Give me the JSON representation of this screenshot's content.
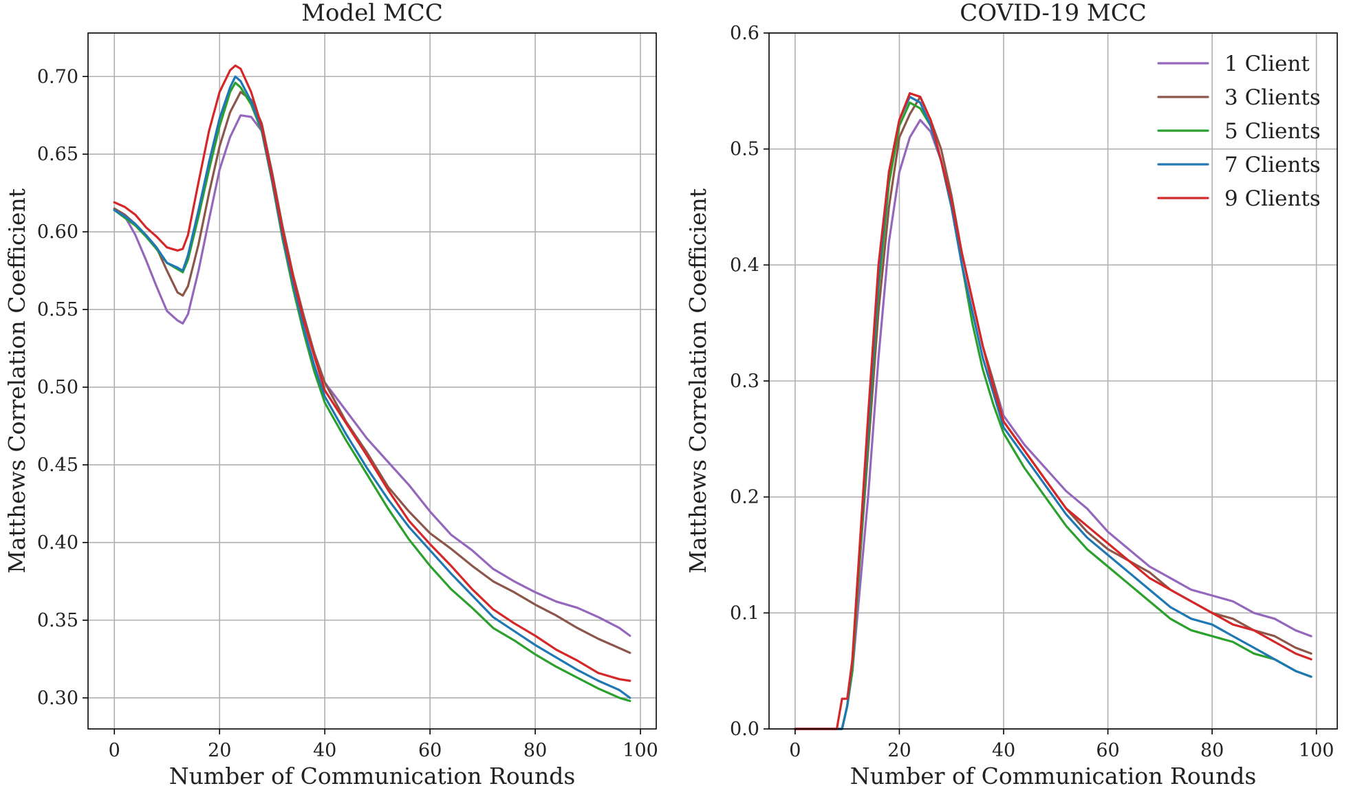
{
  "colors": {
    "series": [
      "#9467bd",
      "#8c564b",
      "#2ca02c",
      "#1f77b4",
      "#d62728"
    ],
    "grid": "#b0b0b0"
  },
  "chart_data": [
    {
      "type": "line",
      "title": "Model MCC",
      "xlabel": "Number of Communication Rounds",
      "ylabel": "Matthews Correlation Coefficient",
      "xlim": [
        -5,
        103
      ],
      "ylim": [
        0.28,
        0.728
      ],
      "xticks": [
        0,
        20,
        40,
        60,
        80,
        100
      ],
      "yticks": [
        0.3,
        0.35,
        0.4,
        0.45,
        0.5,
        0.55,
        0.6,
        0.65,
        0.7
      ],
      "ytick_labels": [
        "0.30",
        "0.35",
        "0.40",
        "0.45",
        "0.50",
        "0.55",
        "0.60",
        "0.65",
        "0.70"
      ],
      "grid": true,
      "legend": null,
      "series": [
        {
          "name": "1 Client",
          "x": [
            0,
            2,
            4,
            6,
            8,
            10,
            12,
            13,
            14,
            16,
            18,
            20,
            22,
            24,
            26,
            28,
            30,
            32,
            34,
            36,
            38,
            40,
            44,
            48,
            52,
            56,
            60,
            64,
            68,
            72,
            76,
            80,
            84,
            88,
            92,
            96,
            98
          ],
          "y": [
            0.615,
            0.61,
            0.598,
            0.582,
            0.565,
            0.549,
            0.543,
            0.541,
            0.547,
            0.575,
            0.608,
            0.64,
            0.661,
            0.675,
            0.674,
            0.665,
            0.635,
            0.6,
            0.57,
            0.545,
            0.522,
            0.503,
            0.485,
            0.467,
            0.452,
            0.437,
            0.42,
            0.405,
            0.395,
            0.383,
            0.375,
            0.368,
            0.362,
            0.358,
            0.352,
            0.345,
            0.34
          ]
        },
        {
          "name": "3 Clients",
          "x": [
            0,
            2,
            4,
            6,
            8,
            10,
            12,
            13,
            14,
            16,
            18,
            20,
            22,
            24,
            26,
            28,
            30,
            32,
            34,
            36,
            38,
            40,
            44,
            48,
            52,
            56,
            60,
            64,
            68,
            72,
            76,
            80,
            84,
            88,
            92,
            96,
            98
          ],
          "y": [
            0.615,
            0.611,
            0.605,
            0.598,
            0.59,
            0.575,
            0.561,
            0.559,
            0.565,
            0.592,
            0.625,
            0.655,
            0.677,
            0.69,
            0.685,
            0.67,
            0.638,
            0.603,
            0.572,
            0.546,
            0.522,
            0.503,
            0.478,
            0.458,
            0.436,
            0.42,
            0.406,
            0.396,
            0.385,
            0.375,
            0.368,
            0.36,
            0.353,
            0.345,
            0.338,
            0.332,
            0.329
          ]
        },
        {
          "name": "5 Clients",
          "x": [
            0,
            2,
            4,
            6,
            8,
            10,
            12,
            13,
            14,
            16,
            18,
            20,
            22,
            23,
            24,
            26,
            28,
            30,
            32,
            34,
            36,
            38,
            40,
            44,
            48,
            52,
            56,
            60,
            64,
            68,
            72,
            76,
            80,
            84,
            88,
            92,
            96,
            98
          ],
          "y": [
            0.614,
            0.609,
            0.604,
            0.597,
            0.589,
            0.58,
            0.576,
            0.574,
            0.582,
            0.61,
            0.64,
            0.668,
            0.69,
            0.696,
            0.693,
            0.682,
            0.665,
            0.632,
            0.595,
            0.563,
            0.535,
            0.51,
            0.49,
            0.466,
            0.444,
            0.422,
            0.402,
            0.385,
            0.37,
            0.358,
            0.345,
            0.337,
            0.328,
            0.32,
            0.313,
            0.306,
            0.3,
            0.298
          ]
        },
        {
          "name": "7 Clients",
          "x": [
            0,
            2,
            4,
            6,
            8,
            10,
            12,
            13,
            14,
            16,
            18,
            20,
            22,
            23,
            24,
            26,
            28,
            30,
            32,
            34,
            36,
            38,
            40,
            44,
            48,
            52,
            56,
            60,
            64,
            68,
            72,
            76,
            80,
            84,
            88,
            92,
            96,
            98
          ],
          "y": [
            0.614,
            0.61,
            0.605,
            0.598,
            0.59,
            0.58,
            0.577,
            0.575,
            0.585,
            0.614,
            0.645,
            0.673,
            0.693,
            0.7,
            0.697,
            0.684,
            0.666,
            0.633,
            0.597,
            0.566,
            0.538,
            0.514,
            0.494,
            0.47,
            0.448,
            0.428,
            0.41,
            0.395,
            0.38,
            0.366,
            0.352,
            0.343,
            0.334,
            0.326,
            0.318,
            0.311,
            0.305,
            0.3
          ]
        },
        {
          "name": "9 Clients",
          "x": [
            0,
            2,
            4,
            6,
            8,
            10,
            12,
            13,
            14,
            16,
            18,
            20,
            22,
            23,
            24,
            26,
            28,
            30,
            32,
            34,
            36,
            38,
            40,
            44,
            48,
            52,
            56,
            60,
            64,
            68,
            72,
            76,
            80,
            84,
            88,
            92,
            96,
            98
          ],
          "y": [
            0.619,
            0.616,
            0.611,
            0.603,
            0.597,
            0.59,
            0.588,
            0.589,
            0.598,
            0.632,
            0.665,
            0.69,
            0.704,
            0.707,
            0.705,
            0.69,
            0.668,
            0.635,
            0.6,
            0.57,
            0.543,
            0.52,
            0.498,
            0.477,
            0.456,
            0.434,
            0.414,
            0.399,
            0.385,
            0.37,
            0.357,
            0.348,
            0.34,
            0.331,
            0.324,
            0.316,
            0.312,
            0.311
          ]
        }
      ]
    },
    {
      "type": "line",
      "title": "COVID-19 MCC",
      "xlabel": "Number of Communication Rounds",
      "ylabel": "Matthews Correlation Coefficient",
      "xlim": [
        -5,
        104
      ],
      "ylim": [
        0.0,
        0.6
      ],
      "xticks": [
        0,
        20,
        40,
        60,
        80,
        100
      ],
      "yticks": [
        0.0,
        0.1,
        0.2,
        0.3,
        0.4,
        0.5,
        0.6
      ],
      "ytick_labels": [
        "0.0",
        "0.1",
        "0.2",
        "0.3",
        "0.4",
        "0.5",
        "0.6"
      ],
      "grid": true,
      "legend": "top-right",
      "series": [
        {
          "name": "1 Client",
          "x": [
            0,
            8,
            9,
            10,
            11,
            12,
            14,
            16,
            18,
            20,
            22,
            24,
            26,
            28,
            30,
            32,
            34,
            36,
            38,
            40,
            44,
            48,
            52,
            56,
            60,
            64,
            68,
            72,
            76,
            80,
            84,
            88,
            92,
            96,
            99
          ],
          "y": [
            0.0,
            0.0,
            0.0,
            0.02,
            0.05,
            0.1,
            0.2,
            0.32,
            0.42,
            0.48,
            0.51,
            0.525,
            0.515,
            0.49,
            0.45,
            0.41,
            0.37,
            0.33,
            0.3,
            0.27,
            0.245,
            0.225,
            0.205,
            0.19,
            0.17,
            0.155,
            0.14,
            0.13,
            0.12,
            0.115,
            0.11,
            0.1,
            0.095,
            0.085,
            0.08
          ]
        },
        {
          "name": "3 Clients",
          "x": [
            0,
            8,
            9,
            10,
            11,
            12,
            14,
            16,
            18,
            20,
            22,
            24,
            26,
            28,
            30,
            32,
            34,
            36,
            38,
            40,
            44,
            48,
            52,
            56,
            60,
            64,
            68,
            72,
            76,
            80,
            84,
            88,
            92,
            96,
            99
          ],
          "y": [
            0.0,
            0.0,
            0.0,
            0.02,
            0.055,
            0.12,
            0.24,
            0.36,
            0.45,
            0.51,
            0.53,
            0.545,
            0.525,
            0.5,
            0.46,
            0.41,
            0.37,
            0.33,
            0.3,
            0.265,
            0.24,
            0.215,
            0.19,
            0.17,
            0.155,
            0.145,
            0.135,
            0.12,
            0.11,
            0.1,
            0.095,
            0.085,
            0.08,
            0.07,
            0.065
          ]
        },
        {
          "name": "5 Clients",
          "x": [
            0,
            8,
            9,
            10,
            11,
            12,
            14,
            16,
            18,
            20,
            22,
            24,
            26,
            28,
            30,
            32,
            34,
            36,
            38,
            40,
            44,
            48,
            52,
            56,
            60,
            64,
            68,
            72,
            76,
            80,
            84,
            88,
            92,
            96,
            99
          ],
          "y": [
            0.0,
            0.0,
            0.0,
            0.02,
            0.05,
            0.12,
            0.25,
            0.38,
            0.47,
            0.52,
            0.54,
            0.535,
            0.52,
            0.49,
            0.45,
            0.4,
            0.35,
            0.31,
            0.28,
            0.255,
            0.225,
            0.2,
            0.175,
            0.155,
            0.14,
            0.125,
            0.11,
            0.095,
            0.085,
            0.08,
            0.075,
            0.065,
            0.06,
            0.05,
            0.045
          ]
        },
        {
          "name": "7 Clients",
          "x": [
            0,
            8,
            9,
            10,
            11,
            12,
            14,
            16,
            18,
            20,
            22,
            24,
            26,
            28,
            30,
            32,
            34,
            36,
            38,
            40,
            44,
            48,
            52,
            56,
            60,
            64,
            68,
            72,
            76,
            80,
            84,
            88,
            92,
            96,
            99
          ],
          "y": [
            0.0,
            0.0,
            0.0,
            0.02,
            0.06,
            0.13,
            0.26,
            0.39,
            0.48,
            0.525,
            0.545,
            0.54,
            0.52,
            0.49,
            0.45,
            0.4,
            0.36,
            0.32,
            0.29,
            0.26,
            0.235,
            0.21,
            0.185,
            0.165,
            0.15,
            0.135,
            0.12,
            0.105,
            0.095,
            0.09,
            0.08,
            0.07,
            0.06,
            0.05,
            0.045
          ]
        },
        {
          "name": "9 Clients",
          "x": [
            0,
            8,
            9,
            10,
            11,
            12,
            14,
            16,
            18,
            20,
            22,
            24,
            26,
            28,
            30,
            32,
            34,
            36,
            38,
            40,
            44,
            48,
            52,
            56,
            60,
            64,
            68,
            72,
            76,
            80,
            84,
            88,
            92,
            96,
            99
          ],
          "y": [
            0.0,
            0.0,
            0.026,
            0.026,
            0.06,
            0.13,
            0.27,
            0.4,
            0.48,
            0.525,
            0.548,
            0.545,
            0.525,
            0.49,
            0.455,
            0.41,
            0.37,
            0.33,
            0.295,
            0.265,
            0.24,
            0.215,
            0.19,
            0.175,
            0.16,
            0.145,
            0.13,
            0.12,
            0.11,
            0.1,
            0.09,
            0.085,
            0.075,
            0.065,
            0.06
          ]
        }
      ]
    }
  ]
}
